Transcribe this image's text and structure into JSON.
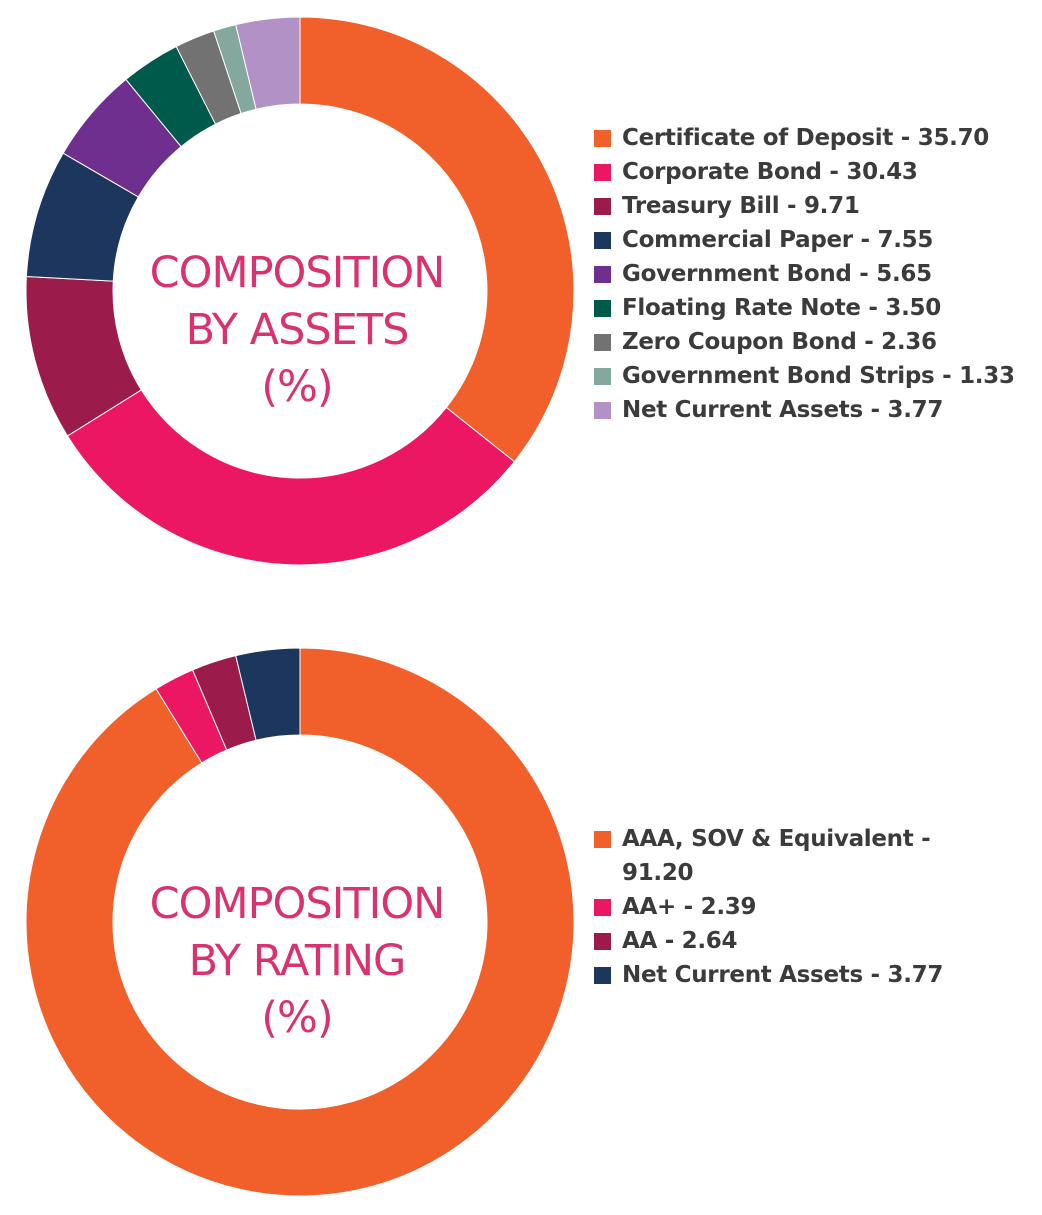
{
  "chart_data": [
    {
      "type": "pie",
      "title_lines": [
        "COMPOSITION",
        "BY ASSETS",
        "(%)"
      ],
      "legend_position": "right",
      "slices": [
        {
          "label": "Certificate of Deposit - 35.70",
          "value": 35.7,
          "color": "#f15f2a"
        },
        {
          "label": "Corporate Bond - 30.43",
          "value": 30.43,
          "color": "#ec1763"
        },
        {
          "label": "Treasury Bill - 9.71",
          "value": 9.71,
          "color": "#9b1b4b"
        },
        {
          "label": "Commercial Paper - 7.55",
          "value": 7.55,
          "color": "#1c365e"
        },
        {
          "label": "Government Bond - 5.65",
          "value": 5.65,
          "color": "#6f2f8f"
        },
        {
          "label": "Floating Rate Note - 3.50",
          "value": 3.5,
          "color": "#005a4b"
        },
        {
          "label": "Zero Coupon Bond - 2.36",
          "value": 2.36,
          "color": "#727272"
        },
        {
          "label": "Government Bond Strips - 1.33",
          "value": 1.33,
          "color": "#84a89d"
        },
        {
          "label": "Net Current Assets - 3.77",
          "value": 3.77,
          "color": "#b292c6"
        }
      ]
    },
    {
      "type": "pie",
      "title_lines": [
        "COMPOSITION",
        "BY RATING",
        "(%)"
      ],
      "legend_position": "right",
      "slices": [
        {
          "label": "AAA, SOV & Equivalent - 91.20",
          "value": 91.2,
          "color": "#f15f2a"
        },
        {
          "label": "AA+ - 2.39",
          "value": 2.39,
          "color": "#ec1763"
        },
        {
          "label": "AA - 2.64",
          "value": 2.64,
          "color": "#9b1b4b"
        },
        {
          "label": "Net Current Assets - 3.77",
          "value": 3.77,
          "color": "#1c365e"
        }
      ]
    }
  ]
}
